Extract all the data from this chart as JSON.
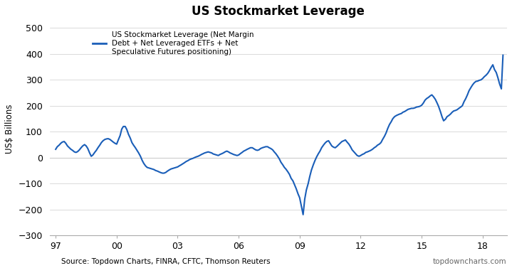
{
  "title": "US Stockmarket Leverage",
  "ylabel": "US$ Billions",
  "source_left": "Source: Topdown Charts, FINRA, CFTC, Thomson Reuters",
  "source_right": "topdowncharts.com",
  "legend_label": "US Stockmarket Leverage (Net Margin\nDebt + Net Leveraged ETFs + Net\nSpeculative Futures positioning)",
  "line_color": "#1a5eb8",
  "line_width": 1.5,
  "xlim": [
    1996.7,
    2019.2
  ],
  "ylim": [
    -300,
    520
  ],
  "yticks": [
    -300,
    -200,
    -100,
    0,
    100,
    200,
    300,
    400,
    500
  ],
  "xticks": [
    1997,
    2000,
    2003,
    2006,
    2009,
    2012,
    2015,
    2018
  ],
  "xticklabels": [
    "97",
    "00",
    "03",
    "06",
    "09",
    "12",
    "15",
    "18"
  ],
  "background_color": "#ffffff",
  "grid_color": "#cccccc",
  "x": [
    1997.0,
    1997.08,
    1997.17,
    1997.25,
    1997.33,
    1997.42,
    1997.5,
    1997.58,
    1997.67,
    1997.75,
    1997.83,
    1997.92,
    1998.0,
    1998.08,
    1998.17,
    1998.25,
    1998.33,
    1998.42,
    1998.5,
    1998.58,
    1998.67,
    1998.75,
    1998.83,
    1998.92,
    1999.0,
    1999.08,
    1999.17,
    1999.25,
    1999.33,
    1999.42,
    1999.5,
    1999.58,
    1999.67,
    1999.75,
    1999.83,
    1999.92,
    2000.0,
    2000.08,
    2000.17,
    2000.25,
    2000.33,
    2000.42,
    2000.5,
    2000.58,
    2000.67,
    2000.75,
    2000.83,
    2000.92,
    2001.0,
    2001.08,
    2001.17,
    2001.25,
    2001.33,
    2001.42,
    2001.5,
    2001.58,
    2001.67,
    2001.75,
    2001.83,
    2001.92,
    2002.0,
    2002.08,
    2002.17,
    2002.25,
    2002.33,
    2002.42,
    2002.5,
    2002.58,
    2002.67,
    2002.75,
    2002.83,
    2002.92,
    2003.0,
    2003.08,
    2003.17,
    2003.25,
    2003.33,
    2003.42,
    2003.5,
    2003.58,
    2003.67,
    2003.75,
    2003.83,
    2003.92,
    2004.0,
    2004.08,
    2004.17,
    2004.25,
    2004.33,
    2004.42,
    2004.5,
    2004.58,
    2004.67,
    2004.75,
    2004.83,
    2004.92,
    2005.0,
    2005.08,
    2005.17,
    2005.25,
    2005.33,
    2005.42,
    2005.5,
    2005.58,
    2005.67,
    2005.75,
    2005.83,
    2005.92,
    2006.0,
    2006.08,
    2006.17,
    2006.25,
    2006.33,
    2006.42,
    2006.5,
    2006.58,
    2006.67,
    2006.75,
    2006.83,
    2006.92,
    2007.0,
    2007.08,
    2007.17,
    2007.25,
    2007.33,
    2007.42,
    2007.5,
    2007.58,
    2007.67,
    2007.75,
    2007.83,
    2007.92,
    2008.0,
    2008.08,
    2008.17,
    2008.25,
    2008.33,
    2008.42,
    2008.5,
    2008.58,
    2008.67,
    2008.75,
    2008.83,
    2008.92,
    2009.0,
    2009.08,
    2009.17,
    2009.25,
    2009.33,
    2009.42,
    2009.5,
    2009.58,
    2009.67,
    2009.75,
    2009.83,
    2009.92,
    2010.0,
    2010.08,
    2010.17,
    2010.25,
    2010.33,
    2010.42,
    2010.5,
    2010.58,
    2010.67,
    2010.75,
    2010.83,
    2010.92,
    2011.0,
    2011.08,
    2011.17,
    2011.25,
    2011.33,
    2011.42,
    2011.5,
    2011.58,
    2011.67,
    2011.75,
    2011.83,
    2011.92,
    2012.0,
    2012.08,
    2012.17,
    2012.25,
    2012.33,
    2012.42,
    2012.5,
    2012.58,
    2012.67,
    2012.75,
    2012.83,
    2012.92,
    2013.0,
    2013.08,
    2013.17,
    2013.25,
    2013.33,
    2013.42,
    2013.5,
    2013.58,
    2013.67,
    2013.75,
    2013.83,
    2013.92,
    2014.0,
    2014.08,
    2014.17,
    2014.25,
    2014.33,
    2014.42,
    2014.5,
    2014.58,
    2014.67,
    2014.75,
    2014.83,
    2014.92,
    2015.0,
    2015.08,
    2015.17,
    2015.25,
    2015.33,
    2015.42,
    2015.5,
    2015.58,
    2015.67,
    2015.75,
    2015.83,
    2015.92,
    2016.0,
    2016.08,
    2016.17,
    2016.25,
    2016.33,
    2016.42,
    2016.5,
    2016.58,
    2016.67,
    2016.75,
    2016.83,
    2016.92,
    2017.0,
    2017.08,
    2017.17,
    2017.25,
    2017.33,
    2017.42,
    2017.5,
    2017.58,
    2017.67,
    2017.75,
    2017.83,
    2017.92,
    2018.0,
    2018.08,
    2018.17,
    2018.25,
    2018.33,
    2018.42,
    2018.5,
    2018.58,
    2018.67,
    2018.75,
    2018.83,
    2018.92,
    2019.0
  ],
  "y": [
    32,
    42,
    48,
    55,
    60,
    62,
    55,
    45,
    38,
    32,
    28,
    22,
    20,
    23,
    30,
    38,
    45,
    50,
    45,
    35,
    18,
    5,
    10,
    20,
    28,
    38,
    48,
    58,
    65,
    70,
    72,
    73,
    70,
    65,
    60,
    55,
    52,
    68,
    85,
    110,
    120,
    120,
    108,
    90,
    75,
    58,
    48,
    38,
    28,
    18,
    5,
    -10,
    -22,
    -32,
    -38,
    -40,
    -42,
    -44,
    -46,
    -50,
    -52,
    -55,
    -58,
    -60,
    -60,
    -57,
    -52,
    -48,
    -44,
    -42,
    -40,
    -38,
    -36,
    -32,
    -28,
    -24,
    -20,
    -15,
    -12,
    -8,
    -5,
    -3,
    0,
    3,
    5,
    8,
    12,
    15,
    18,
    20,
    22,
    20,
    18,
    14,
    12,
    10,
    8,
    12,
    15,
    18,
    22,
    25,
    22,
    18,
    15,
    12,
    10,
    8,
    10,
    15,
    20,
    25,
    28,
    32,
    35,
    38,
    38,
    34,
    30,
    28,
    30,
    35,
    38,
    40,
    42,
    42,
    38,
    35,
    30,
    22,
    15,
    5,
    -5,
    -18,
    -28,
    -38,
    -45,
    -55,
    -65,
    -80,
    -90,
    -105,
    -120,
    -140,
    -155,
    -185,
    -220,
    -160,
    -125,
    -100,
    -72,
    -48,
    -28,
    -12,
    2,
    15,
    25,
    38,
    48,
    56,
    62,
    65,
    55,
    45,
    40,
    38,
    43,
    50,
    56,
    62,
    65,
    68,
    60,
    52,
    42,
    30,
    22,
    15,
    8,
    5,
    8,
    12,
    15,
    20,
    22,
    25,
    28,
    32,
    38,
    42,
    48,
    52,
    58,
    70,
    82,
    95,
    112,
    128,
    138,
    150,
    158,
    162,
    165,
    168,
    170,
    175,
    178,
    182,
    186,
    188,
    190,
    190,
    192,
    195,
    196,
    198,
    202,
    210,
    222,
    228,
    232,
    238,
    242,
    235,
    225,
    212,
    198,
    178,
    158,
    142,
    148,
    158,
    162,
    168,
    175,
    180,
    182,
    185,
    190,
    195,
    200,
    215,
    228,
    242,
    258,
    270,
    280,
    288,
    294,
    295,
    298,
    300,
    305,
    312,
    318,
    325,
    335,
    348,
    358,
    340,
    328,
    308,
    285,
    265,
    395
  ]
}
